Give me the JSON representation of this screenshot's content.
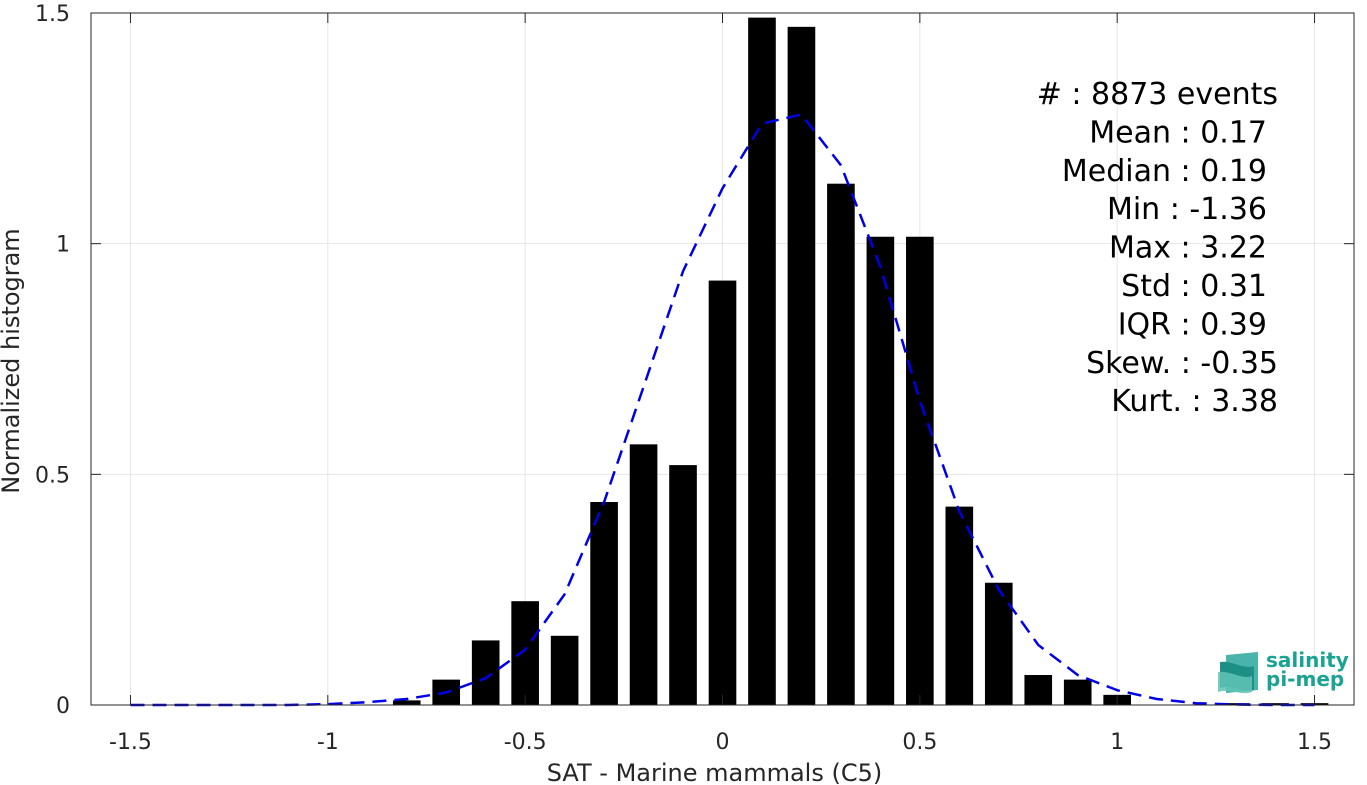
{
  "chart_data": {
    "type": "bar",
    "xlabel": "SAT - Marine mammals (C5)",
    "ylabel": "Normalized histogram",
    "xlim": [
      -1.6,
      1.6
    ],
    "ylim": [
      0,
      1.5
    ],
    "xticks": [
      -1.5,
      -1,
      -0.5,
      0,
      0.5,
      1,
      1.5
    ],
    "xtick_labels": [
      "-1.5",
      "-1",
      "-0.5",
      "0",
      "0.5",
      "1",
      "1.5"
    ],
    "yticks": [
      0,
      0.5,
      1,
      1.5
    ],
    "ytick_labels": [
      "0",
      "0.5",
      "1",
      "1.5"
    ],
    "grid": true,
    "bar_width": 0.07,
    "bins": {
      "x": [
        -1.5,
        -1.4,
        -1.3,
        -1.2,
        -1.1,
        -1.0,
        -0.9,
        -0.8,
        -0.7,
        -0.6,
        -0.5,
        -0.4,
        -0.3,
        -0.2,
        -0.1,
        0.0,
        0.1,
        0.2,
        0.3,
        0.4,
        0.5,
        0.6,
        0.7,
        0.8,
        0.9,
        1.0,
        1.1,
        1.2,
        1.3,
        1.4,
        1.5
      ],
      "values": [
        0,
        0,
        0,
        0,
        0,
        0,
        0,
        0.01,
        0.055,
        0.14,
        0.225,
        0.15,
        0.44,
        0.565,
        0.52,
        0.92,
        1.49,
        1.47,
        1.13,
        1.015,
        1.015,
        0.43,
        0.265,
        0.065,
        0.055,
        0.022,
        0,
        0,
        0.004,
        0.004,
        0.004
      ]
    },
    "fit_curve": {
      "style": "dashed",
      "color": "#0000e6",
      "x": [
        -1.5,
        -1.4,
        -1.3,
        -1.2,
        -1.1,
        -1.0,
        -0.9,
        -0.8,
        -0.7,
        -0.6,
        -0.5,
        -0.4,
        -0.3,
        -0.2,
        -0.1,
        0.0,
        0.1,
        0.2,
        0.3,
        0.4,
        0.5,
        0.6,
        0.7,
        0.8,
        0.9,
        1.0,
        1.1,
        1.2,
        1.3,
        1.4,
        1.5
      ],
      "y": [
        0.0,
        0.0,
        0.0,
        0.0,
        0.0,
        0.002,
        0.006,
        0.013,
        0.027,
        0.058,
        0.12,
        0.24,
        0.44,
        0.69,
        0.94,
        1.12,
        1.26,
        1.28,
        1.17,
        0.95,
        0.66,
        0.42,
        0.25,
        0.13,
        0.065,
        0.032,
        0.013,
        0.004,
        0.001,
        0.0,
        0.0
      ]
    },
    "bar_color": "#000000"
  },
  "stats": {
    "lines": [
      "#  : 8873 events",
      "Mean : 0.17",
      "Median : 0.19",
      "Min : -1.36",
      "Max : 3.22",
      "Std : 0.31",
      "IQR : 0.39",
      "Skew. : -0.35",
      "Kurt. : 3.38"
    ]
  },
  "logo": {
    "line1": "salinity",
    "line2": "pi-mep",
    "icon": "salinity-wave-logo-icon",
    "color": "#1aa393"
  }
}
